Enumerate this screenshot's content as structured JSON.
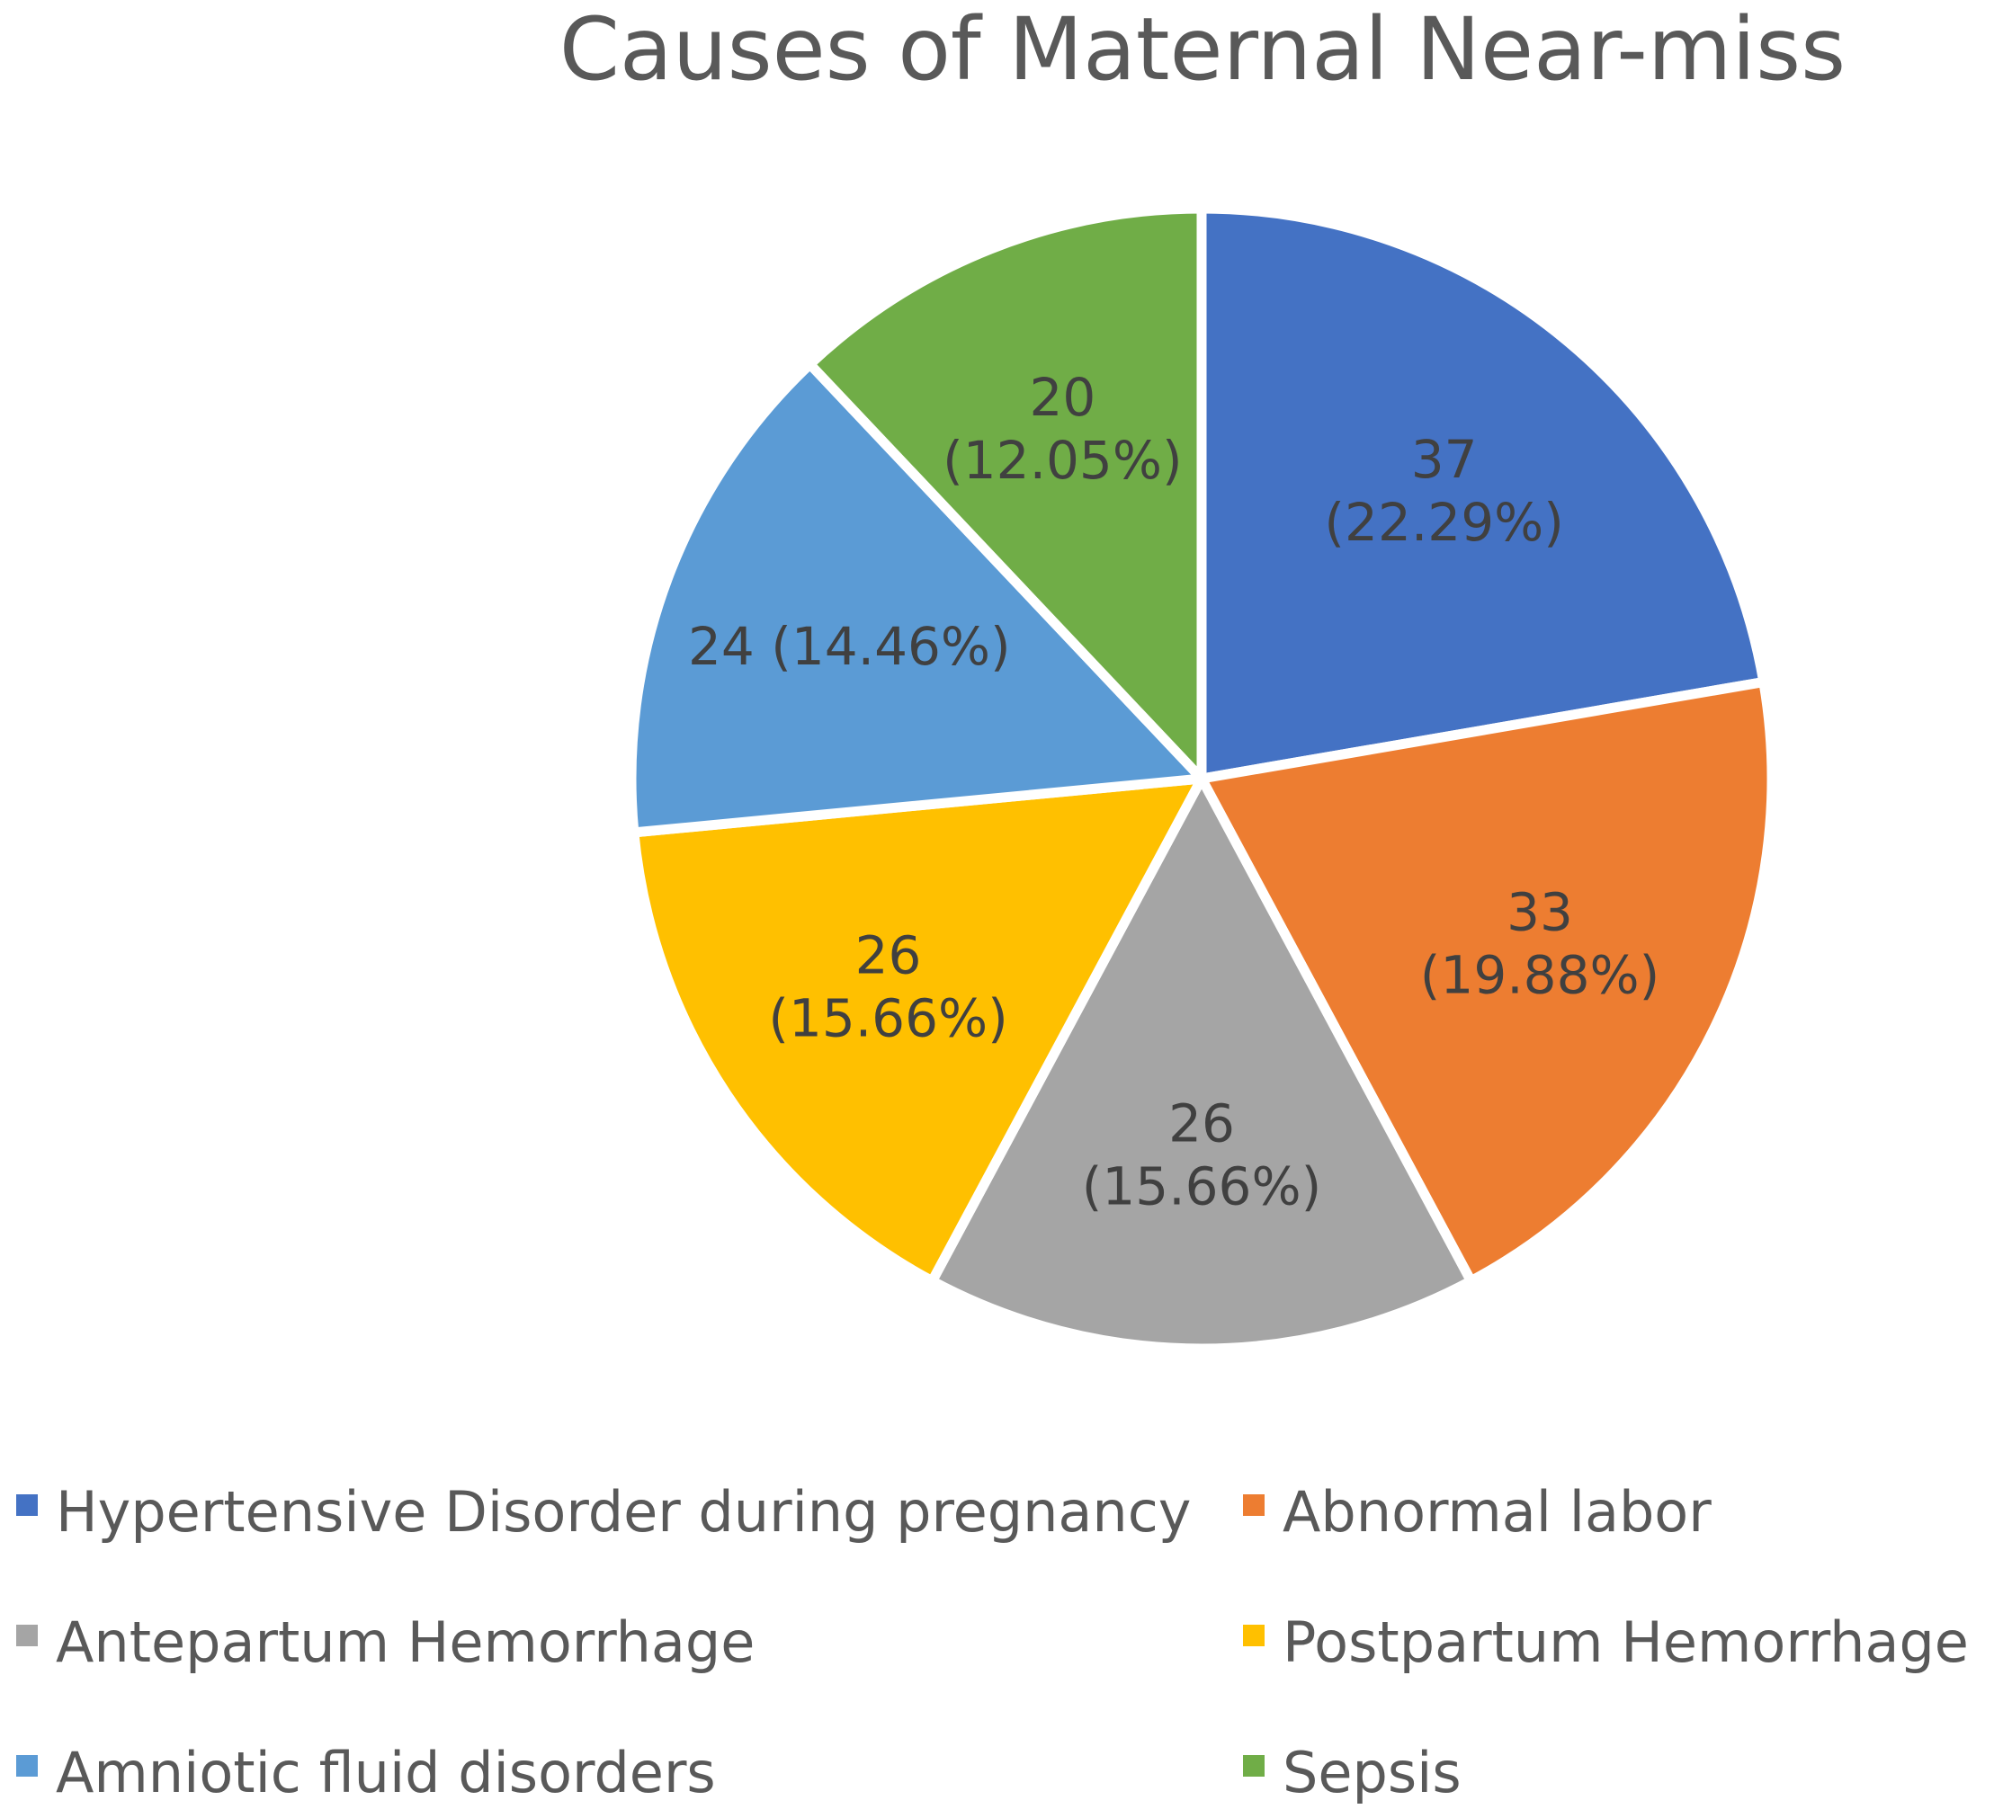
{
  "chart_data": {
    "type": "pie",
    "title": "Causes of Maternal Near-miss",
    "start_angle_deg": 0,
    "direction": "clockwise",
    "legend_position": "bottom",
    "slices": [
      {
        "label": "Hypertensive Disorder during pregnancy",
        "value": 37,
        "percent": 22.29,
        "color": "#4472C4",
        "data_label_lines": [
          "37",
          "(22.29%)"
        ]
      },
      {
        "label": "Abnormal labor",
        "value": 33,
        "percent": 19.88,
        "color": "#ED7D31",
        "data_label_lines": [
          "33",
          "(19.88%)"
        ]
      },
      {
        "label": "Antepartum Hemorrhage",
        "value": 26,
        "percent": 15.66,
        "color": "#A5A5A5",
        "data_label_lines": [
          "26",
          "(15.66%)"
        ]
      },
      {
        "label": "Postpartum Hemorrhage",
        "value": 26,
        "percent": 15.66,
        "color": "#FFC000",
        "data_label_lines": [
          "26",
          "(15.66%)"
        ]
      },
      {
        "label": "Amniotic fluid disorders",
        "value": 24,
        "percent": 14.46,
        "color": "#5B9BD5",
        "data_label_lines": [
          "24 (14.46%)"
        ]
      },
      {
        "label": "Sepsis",
        "value": 20,
        "percent": 12.05,
        "color": "#70AD47",
        "data_label_lines": [
          "20",
          "(12.05%)"
        ]
      }
    ]
  }
}
